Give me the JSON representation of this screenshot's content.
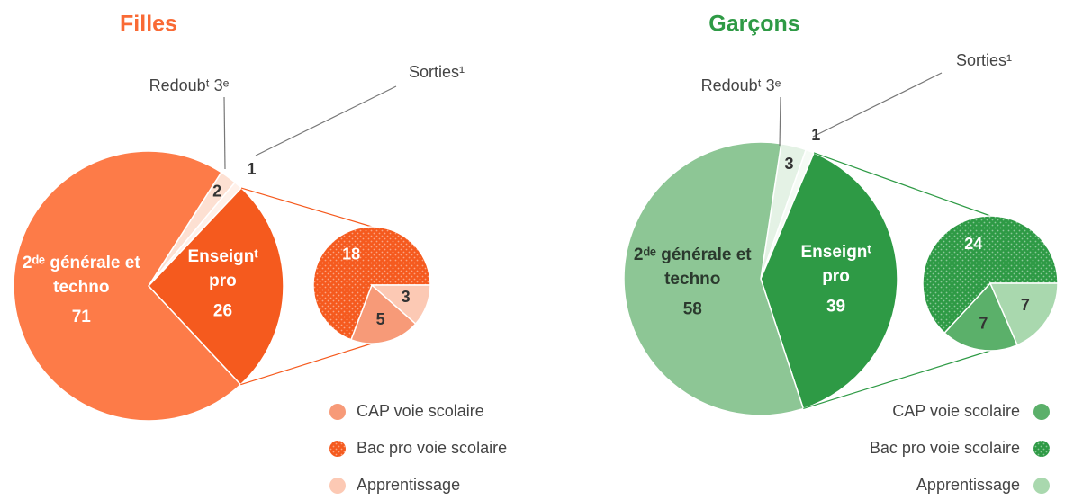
{
  "chart_data": [
    {
      "type": "pie",
      "title": "Filles",
      "title_color": "#f96a35",
      "categories": [
        "Redoubᵗ 3ᵉ",
        "Sorties¹",
        "Enseignᵗ pro",
        "2ᵈᵉ générale et techno"
      ],
      "values": [
        2,
        1,
        26,
        71
      ],
      "colors": [
        "#fde0d2",
        "#fff1ea",
        "#f55a1e",
        "#fd7b48"
      ],
      "subpie": {
        "categories": [
          "CAP voie scolaire",
          "Bac pro voie scolaire",
          "Apprentissage"
        ],
        "values": [
          5,
          18,
          3
        ],
        "colors": [
          "#f79a78",
          "#f55a1e",
          "#fcc9b4"
        ],
        "patterns": [
          "solid",
          "dotted",
          "solid"
        ]
      }
    },
    {
      "type": "pie",
      "title": "Garçons",
      "title_color": "#2e9a45",
      "categories": [
        "Redoubᵗ 3ᵉ",
        "Sorties¹",
        "Enseignᵗ pro",
        "2ᵈᵉ générale et techno"
      ],
      "values": [
        3,
        1,
        39,
        58
      ],
      "colors": [
        "#e4f2e5",
        "#f5fbf5",
        "#2e9a45",
        "#8dc695"
      ],
      "subpie": {
        "categories": [
          "CAP voie scolaire",
          "Bac pro voie scolaire",
          "Apprentissage"
        ],
        "values": [
          7,
          24,
          7
        ],
        "colors": [
          "#5bb06a",
          "#2e9a45",
          "#a9d8ae"
        ],
        "patterns": [
          "solid",
          "dotted",
          "solid"
        ]
      }
    }
  ]
}
